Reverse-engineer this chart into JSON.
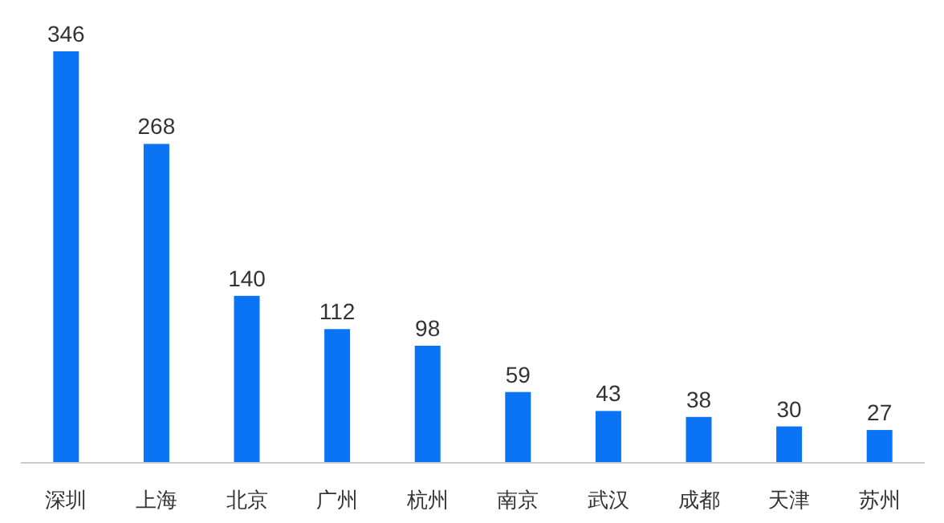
{
  "chart_data": {
    "type": "bar",
    "categories": [
      "深圳",
      "上海",
      "北京",
      "广州",
      "杭州",
      "南京",
      "武汉",
      "成都",
      "天津",
      "苏州"
    ],
    "values": [
      346,
      268,
      140,
      112,
      98,
      59,
      43,
      38,
      30,
      27
    ],
    "color": "#0a74f5",
    "data_labels": true,
    "grid": false,
    "legend": false
  }
}
